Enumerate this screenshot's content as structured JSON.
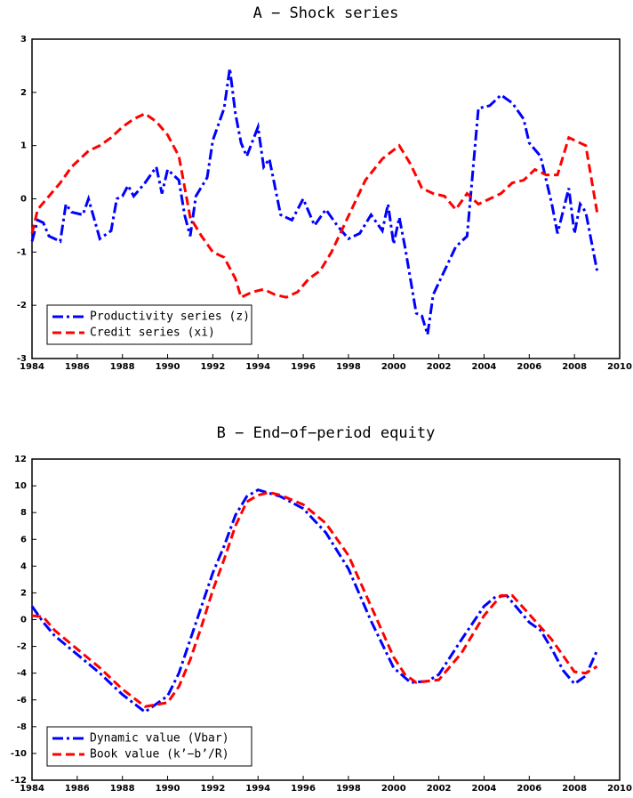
{
  "chart_data": [
    {
      "type": "line",
      "title": "A − Shock series",
      "xlim": [
        1984,
        2010
      ],
      "ylim": [
        -3,
        3
      ],
      "xticks": [
        1984,
        1986,
        1988,
        1990,
        1992,
        1994,
        1996,
        1998,
        2000,
        2002,
        2004,
        2006,
        2008,
        2010
      ],
      "yticks": [
        -3,
        -2,
        -1,
        0,
        1,
        2,
        3
      ],
      "grid": false,
      "legend": "lower left",
      "series": [
        {
          "name": "Productivity series (z)",
          "color": "#0000ff",
          "dash": "dashdot",
          "x": [
            1984,
            1984.25,
            1984.5,
            1984.75,
            1985.25,
            1985.5,
            1985.75,
            1986.25,
            1986.5,
            1987,
            1987.5,
            1987.75,
            1988,
            1988.25,
            1988.5,
            1989,
            1989.5,
            1989.75,
            1990,
            1990.5,
            1990.75,
            1991,
            1991.25,
            1991.75,
            1992,
            1992.5,
            1992.75,
            1993,
            1993.25,
            1993.5,
            1994,
            1994.25,
            1994.5,
            1995,
            1995.5,
            1996,
            1996.5,
            1997,
            1997.5,
            1998,
            1998.5,
            1999,
            1999.5,
            1999.75,
            2000,
            2000.25,
            2000.5,
            2001,
            2001.25,
            2001.5,
            2001.75,
            2002.25,
            2002.75,
            2003.25,
            2003.5,
            2003.75,
            2004.25,
            2004.75,
            2005.25,
            2005.75,
            2006,
            2006.5,
            2007,
            2007.25,
            2007.75,
            2008,
            2008.25,
            2008.5,
            2009
          ],
          "values": [
            -0.8,
            -0.4,
            -0.45,
            -0.7,
            -0.8,
            -0.1,
            -0.25,
            -0.3,
            0.0,
            -0.75,
            -0.6,
            0.0,
            0.05,
            0.25,
            0.05,
            0.3,
            0.6,
            0.1,
            0.55,
            0.35,
            -0.3,
            -0.7,
            0.05,
            0.4,
            1.1,
            1.7,
            2.45,
            1.6,
            1.05,
            0.8,
            1.35,
            0.6,
            0.75,
            -0.3,
            -0.4,
            0.0,
            -0.5,
            -0.2,
            -0.5,
            -0.75,
            -0.65,
            -0.3,
            -0.6,
            -0.1,
            -0.85,
            -0.35,
            -0.9,
            -2.15,
            -2.2,
            -2.55,
            -1.8,
            -1.35,
            -0.9,
            -0.7,
            0.5,
            1.7,
            1.75,
            1.95,
            1.8,
            1.5,
            1.05,
            0.8,
            -0.1,
            -0.65,
            0.2,
            -0.65,
            -0.1,
            -0.25,
            -1.35
          ]
        },
        {
          "name": "Credit series (xi)",
          "color": "#ff0000",
          "dash": "dashed",
          "x": [
            1984,
            1984.25,
            1984.75,
            1985.25,
            1985.75,
            1986.5,
            1987,
            1987.5,
            1988,
            1988.5,
            1989,
            1989.5,
            1990,
            1990.5,
            1991,
            1991.5,
            1992,
            1992.5,
            1993,
            1993.25,
            1993.75,
            1994.25,
            1994.75,
            1995.25,
            1995.75,
            1996.25,
            1996.75,
            1997.25,
            1997.75,
            1998.25,
            1998.75,
            1999.5,
            2000.25,
            2000.75,
            2001.25,
            2001.75,
            2002.25,
            2002.75,
            2003.25,
            2003.75,
            2004.25,
            2004.75,
            2005.25,
            2005.75,
            2006.25,
            2006.75,
            2007.25,
            2007.75,
            2008.25,
            2008.5,
            2009
          ],
          "values": [
            -0.65,
            -0.2,
            0.05,
            0.3,
            0.6,
            0.9,
            1.0,
            1.15,
            1.35,
            1.5,
            1.6,
            1.45,
            1.2,
            0.8,
            -0.35,
            -0.7,
            -1.0,
            -1.1,
            -1.5,
            -1.85,
            -1.75,
            -1.7,
            -1.8,
            -1.85,
            -1.75,
            -1.5,
            -1.35,
            -1.0,
            -0.55,
            -0.1,
            0.35,
            0.75,
            1.0,
            0.65,
            0.2,
            0.1,
            0.05,
            -0.2,
            0.1,
            -0.1,
            0.0,
            0.1,
            0.3,
            0.35,
            0.55,
            0.45,
            0.45,
            1.15,
            1.05,
            1.0,
            -0.25
          ]
        }
      ]
    },
    {
      "type": "line",
      "title": "B − End−of−period equity",
      "xlim": [
        1984,
        2010
      ],
      "ylim": [
        -12,
        12
      ],
      "xticks": [
        1984,
        1986,
        1988,
        1990,
        1992,
        1994,
        1996,
        1998,
        2000,
        2002,
        2004,
        2006,
        2008,
        2010
      ],
      "yticks": [
        -12,
        -10,
        -8,
        -6,
        -4,
        -2,
        0,
        2,
        4,
        6,
        8,
        10,
        12
      ],
      "grid": false,
      "legend": "lower left",
      "series": [
        {
          "name": "Dynamic value (Vbar)",
          "color": "#0000ff",
          "dash": "dashdot",
          "x": [
            1984,
            1984.5,
            1985,
            1986,
            1987,
            1988,
            1989,
            1990,
            1990.5,
            1991,
            1991.5,
            1992,
            1992.5,
            1993,
            1993.5,
            1994,
            1995,
            1996,
            1997,
            1998,
            1999,
            2000,
            2000.75,
            2001.5,
            2002,
            2003,
            2004,
            2004.5,
            2005,
            2006,
            2006.5,
            2007,
            2007.5,
            2008,
            2008.5,
            2009
          ],
          "values": [
            1.0,
            -0.2,
            -1.2,
            -2.6,
            -4.0,
            -5.6,
            -6.9,
            -5.7,
            -4.0,
            -1.5,
            1.0,
            3.5,
            5.5,
            7.8,
            9.2,
            9.7,
            9.2,
            8.3,
            6.5,
            3.8,
            -0.1,
            -3.6,
            -4.7,
            -4.6,
            -4.1,
            -1.5,
            1.0,
            1.7,
            1.8,
            -0.2,
            -0.8,
            -2.2,
            -3.8,
            -4.8,
            -4.2,
            -2.3
          ]
        },
        {
          "name": "Book value (k’−b’/R)",
          "color": "#ff0000",
          "dash": "dashed",
          "x": [
            1984,
            1984.5,
            1985,
            1986,
            1987,
            1988,
            1989,
            1990,
            1990.5,
            1991,
            1991.5,
            1992,
            1992.5,
            1993,
            1993.5,
            1994,
            1994.5,
            1995,
            1996,
            1997,
            1998,
            1999,
            2000,
            2000.5,
            2001,
            2002,
            2003,
            2004,
            2004.75,
            2005.25,
            2006,
            2007,
            2007.5,
            2008,
            2008.5,
            2009
          ],
          "values": [
            0.3,
            0.2,
            -0.8,
            -2.2,
            -3.6,
            -5.2,
            -6.5,
            -6.2,
            -5.0,
            -3.0,
            -0.5,
            2.2,
            4.5,
            7.0,
            8.8,
            9.3,
            9.5,
            9.3,
            8.6,
            7.2,
            4.8,
            1.0,
            -2.8,
            -4.1,
            -4.7,
            -4.5,
            -2.5,
            0.3,
            1.8,
            1.8,
            0.4,
            -1.5,
            -2.7,
            -3.9,
            -4.0,
            -3.5
          ]
        }
      ]
    }
  ]
}
